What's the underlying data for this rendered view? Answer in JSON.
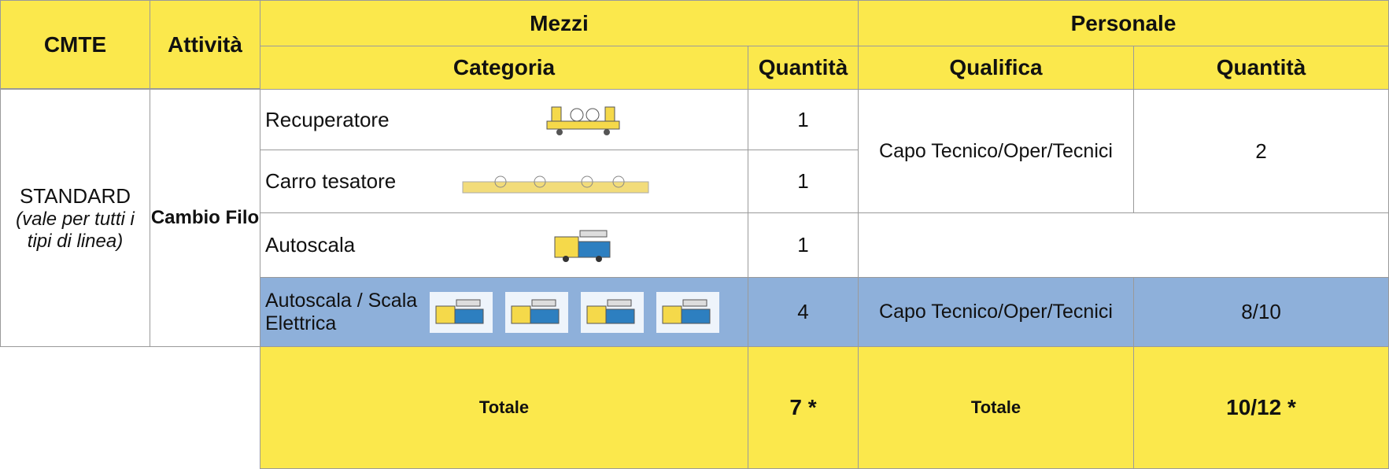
{
  "table": {
    "header": {
      "cmte": "CMTE",
      "attivita": "Attività",
      "mezzi": "Mezzi",
      "personale": "Personale",
      "categoria": "Categoria",
      "quantita_mezzi": "Quantità",
      "qualifica": "Qualifica",
      "quantita_personale": "Quantità"
    },
    "cmte": {
      "main": "STANDARD",
      "note": "(vale per tutti i tipi di linea)"
    },
    "attivita": "Cambio Filo",
    "rows": [
      {
        "categoria": "Recuperatore",
        "quantita": "1"
      },
      {
        "categoria": "Carro tesatore",
        "quantita": "1"
      },
      {
        "categoria": "Autoscala",
        "quantita": "1"
      },
      {
        "categoria": "Autoscala / Scala Elettrica",
        "quantita": "4"
      }
    ],
    "personale": [
      {
        "qualifica": "Capo Tecnico/Oper/Tecnici",
        "quantita": "2"
      },
      {
        "qualifica": "Capo Tecnico/Oper/Tecnici",
        "quantita": "8/10"
      }
    ],
    "totale": {
      "mezzi_label": "Totale",
      "mezzi": "7 *",
      "personale_label": "Totale",
      "personale": "10/12 *"
    }
  }
}
